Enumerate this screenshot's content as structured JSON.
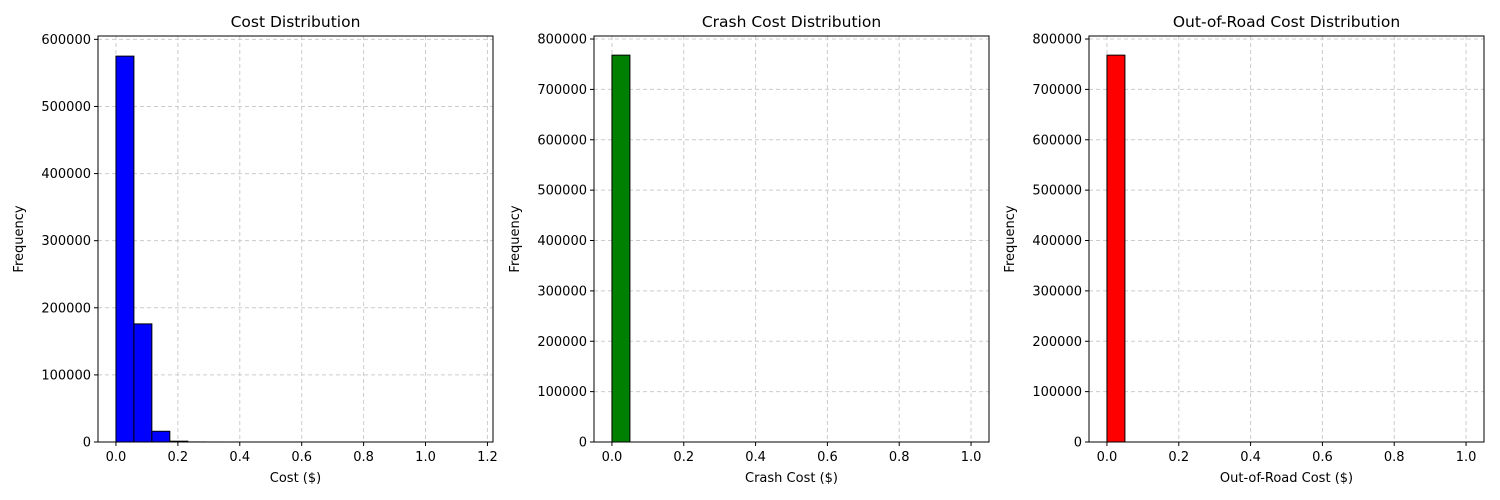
{
  "chart_data": [
    {
      "type": "bar",
      "title": "Cost Distribution",
      "xlabel": "Cost ($)",
      "ylabel": "Frequency",
      "color": "#0000ff",
      "bin_edges": [
        0.0,
        0.058,
        0.116,
        0.174,
        0.232,
        0.29,
        0.348,
        0.406,
        0.464,
        0.522,
        0.58,
        0.638,
        0.696,
        0.754,
        0.812,
        0.87,
        0.928,
        0.986,
        1.044,
        1.102,
        1.16
      ],
      "values": [
        575000,
        176000,
        16000,
        1200,
        100,
        20,
        5,
        2,
        1,
        0,
        0,
        0,
        0,
        0,
        0,
        0,
        0,
        0,
        0,
        1
      ],
      "xlim": [
        -0.058,
        1.218
      ],
      "ylim": [
        0,
        605000
      ],
      "xticks": [
        0.0,
        0.2,
        0.4,
        0.6,
        0.8,
        1.0,
        1.2
      ],
      "xtick_labels": [
        "0.0",
        "0.2",
        "0.4",
        "0.6",
        "0.8",
        "1.0",
        "1.2"
      ],
      "yticks": [
        0,
        100000,
        200000,
        300000,
        400000,
        500000,
        600000
      ],
      "ytick_labels": [
        "0",
        "100000",
        "200000",
        "300000",
        "400000",
        "500000",
        "600000"
      ],
      "grid": true
    },
    {
      "type": "bar",
      "title": "Crash Cost Distribution",
      "xlabel": "Crash Cost ($)",
      "ylabel": "Frequency",
      "color": "#008000",
      "bin_edges": [
        0.0,
        0.05,
        0.1,
        0.15,
        0.2,
        0.25,
        0.3,
        0.35,
        0.4,
        0.45,
        0.5,
        0.55,
        0.6,
        0.65,
        0.7,
        0.75,
        0.8,
        0.85,
        0.9,
        0.95,
        1.0
      ],
      "values": [
        768000,
        0,
        0,
        0,
        0,
        0,
        0,
        0,
        0,
        0,
        0,
        0,
        0,
        0,
        0,
        0,
        0,
        0,
        0,
        5
      ],
      "xlim": [
        -0.05,
        1.05
      ],
      "ylim": [
        0,
        806000
      ],
      "xticks": [
        0.0,
        0.2,
        0.4,
        0.6,
        0.8,
        1.0
      ],
      "xtick_labels": [
        "0.0",
        "0.2",
        "0.4",
        "0.6",
        "0.8",
        "1.0"
      ],
      "yticks": [
        0,
        100000,
        200000,
        300000,
        400000,
        500000,
        600000,
        700000,
        800000
      ],
      "ytick_labels": [
        "0",
        "100000",
        "200000",
        "300000",
        "400000",
        "500000",
        "600000",
        "700000",
        "800000"
      ],
      "grid": true
    },
    {
      "type": "bar",
      "title": "Out-of-Road Cost Distribution",
      "xlabel": "Out-of-Road Cost ($)",
      "ylabel": "Frequency",
      "color": "#ff0000",
      "bin_edges": [
        0.0,
        0.05,
        0.1,
        0.15,
        0.2,
        0.25,
        0.3,
        0.35,
        0.4,
        0.45,
        0.5,
        0.55,
        0.6,
        0.65,
        0.7,
        0.75,
        0.8,
        0.85,
        0.9,
        0.95,
        1.0
      ],
      "values": [
        768000,
        0,
        0,
        0,
        0,
        0,
        0,
        0,
        0,
        0,
        0,
        0,
        0,
        0,
        0,
        0,
        0,
        0,
        0,
        5
      ],
      "xlim": [
        -0.05,
        1.05
      ],
      "ylim": [
        0,
        806000
      ],
      "xticks": [
        0.0,
        0.2,
        0.4,
        0.6,
        0.8,
        1.0
      ],
      "xtick_labels": [
        "0.0",
        "0.2",
        "0.4",
        "0.6",
        "0.8",
        "1.0"
      ],
      "yticks": [
        0,
        100000,
        200000,
        300000,
        400000,
        500000,
        600000,
        700000,
        800000
      ],
      "ytick_labels": [
        "0",
        "100000",
        "200000",
        "300000",
        "400000",
        "500000",
        "600000",
        "700000",
        "800000"
      ],
      "grid": true
    }
  ]
}
